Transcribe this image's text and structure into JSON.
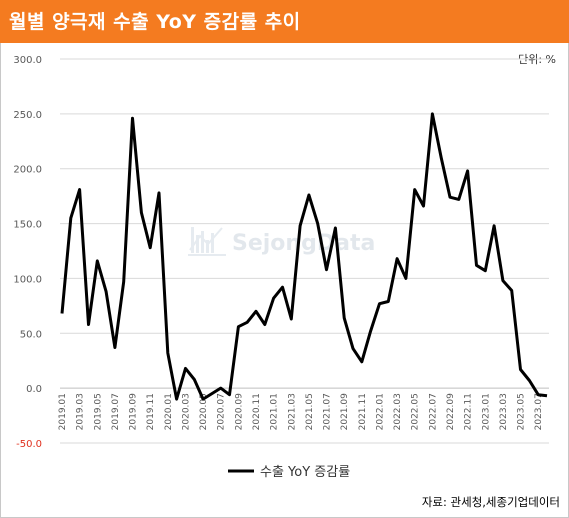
{
  "header": {
    "title": "월별 양극재 수출 YoY 증감률 추이",
    "unit": "단위: %"
  },
  "watermark": {
    "text": "SejongData"
  },
  "source": "자료: 관세청,세종기업데이터",
  "colors": {
    "header_bg": "#f47b20",
    "series": "#000000",
    "grid": "#d9d9d9",
    "axis_text": "#595959"
  },
  "chart_data": {
    "type": "line",
    "title": "월별 양극재 수출 YoY 증감률 추이",
    "xlabel": "",
    "ylabel": "",
    "ylim": [
      -50,
      300
    ],
    "y_ticks": [
      "300.0",
      "250.0",
      "200.0",
      "150.0",
      "100.0",
      "50.0",
      "0.0",
      "-50.0"
    ],
    "grid": true,
    "legend_position": "bottom",
    "x": [
      "2019.01",
      "2019.02",
      "2019.03",
      "2019.04",
      "2019.05",
      "2019.06",
      "2019.07",
      "2019.08",
      "2019.09",
      "2019.10",
      "2019.11",
      "2019.12",
      "2020.01",
      "2020.02",
      "2020.03",
      "2020.04",
      "2020.05",
      "2020.06",
      "2020.07",
      "2020.08",
      "2020.09",
      "2020.10",
      "2020.11",
      "2020.12",
      "2021.01",
      "2021.02",
      "2021.03",
      "2021.04",
      "2021.05",
      "2021.06",
      "2021.07",
      "2021.08",
      "2021.09",
      "2021.10",
      "2021.11",
      "2021.12",
      "2022.01",
      "2022.02",
      "2022.03",
      "2022.04",
      "2022.05",
      "2022.06",
      "2022.07",
      "2022.08",
      "2022.09",
      "2022.10",
      "2022.11",
      "2022.12",
      "2023.01",
      "2023.02",
      "2023.03",
      "2023.04",
      "2023.05",
      "2023.06",
      "2023.07",
      "2023.08"
    ],
    "x_tick_labels": [
      "2019.01",
      "2019.03",
      "2019.05",
      "2019.07",
      "2019.09",
      "2019.11",
      "2020.01",
      "2020.03",
      "2020.05",
      "2020.07",
      "2020.09",
      "2020.11",
      "2021.01",
      "2021.03",
      "2021.05",
      "2021.07",
      "2021.09",
      "2021.11",
      "2022.01",
      "2022.03",
      "2022.05",
      "2022.07",
      "2022.09",
      "2022.11",
      "2023.01",
      "2023.03",
      "2023.05",
      "2023.07"
    ],
    "series": [
      {
        "name": "수출 YoY 증감률",
        "color": "#000000",
        "values": [
          68,
          155,
          181,
          58,
          116,
          88,
          37,
          97,
          246,
          160,
          128,
          178,
          32,
          -10,
          18,
          8,
          -10,
          -5,
          0,
          -6,
          56,
          60,
          70,
          58,
          82,
          92,
          63,
          148,
          176,
          150,
          108,
          146,
          64,
          36,
          24,
          52,
          77,
          79,
          118,
          100,
          181,
          166,
          250,
          210,
          174,
          172,
          198,
          112,
          107,
          148,
          98,
          89,
          17,
          7,
          -6,
          -7
        ]
      }
    ]
  }
}
